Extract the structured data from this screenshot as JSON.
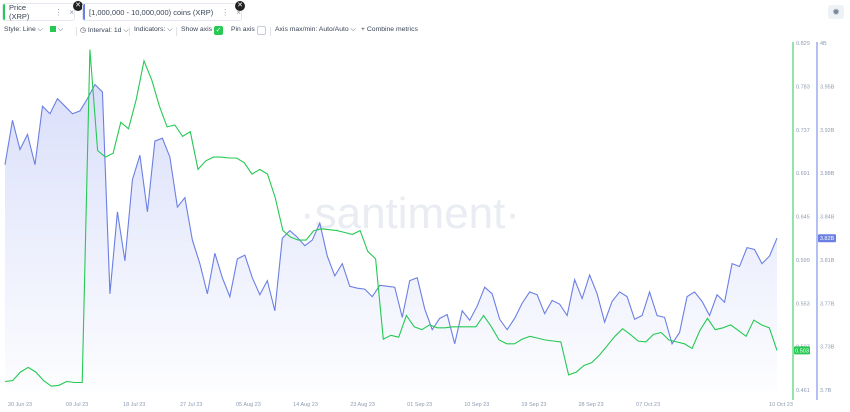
{
  "tabs": [
    {
      "label": "Price (XRP)",
      "color": "#26c953"
    },
    {
      "label": "[1,000,000 - 10,000,000) coins (XRP)",
      "color": "#6b7fe3"
    }
  ],
  "toolbar": {
    "style": "Style: Line",
    "interval": "Interval: 1d",
    "indicators": "Indicators:",
    "show_axis": "Show axis",
    "pin_axis": "Pin axis",
    "axis_maxmin": "Axis max/min: Auto/Auto",
    "combine": "Combine metrics",
    "plus": "+"
  },
  "watermark": "·santiment·",
  "chart_data": {
    "type": "line",
    "x_labels": [
      "30 Jun 23",
      "09 Jul 23",
      "18 Jul 23",
      "27 Jul 23",
      "05 Aug 23",
      "14 Aug 23",
      "23 Aug 23",
      "01 Sep 23",
      "10 Sep 23",
      "19 Sep 23",
      "28 Sep 23",
      "07 Oct 23",
      "10 Oct 23"
    ],
    "price_axis_ticks": [
      0.829,
      0.783,
      0.737,
      0.691,
      0.645,
      0.599,
      0.553,
      0.507,
      0.461
    ],
    "holders_axis_ticks": [
      "4B",
      "3.95B",
      "3.92B",
      "3.88B",
      "3.84B",
      "3.81B",
      "3.77B",
      "3.73B",
      "3.7B"
    ],
    "price_ylim": [
      0.461,
      0.829
    ],
    "price_current": "0.503",
    "holders_current": "3.82B",
    "series": [
      {
        "name": "Price (XRP)",
        "color": "#26c953",
        "values": [
          0.47,
          0.471,
          0.48,
          0.485,
          0.48,
          0.471,
          0.465,
          0.466,
          0.47,
          0.469,
          0.469,
          0.822,
          0.715,
          0.708,
          0.712,
          0.745,
          0.738,
          0.769,
          0.81,
          0.79,
          0.762,
          0.74,
          0.742,
          0.73,
          0.735,
          0.695,
          0.704,
          0.708,
          0.708,
          0.707,
          0.707,
          0.702,
          0.69,
          0.695,
          0.69,
          0.665,
          0.63,
          0.623,
          0.62,
          0.62,
          0.63,
          0.632,
          0.631,
          0.63,
          0.628,
          0.626,
          0.63,
          0.608,
          0.6,
          0.515,
          0.519,
          0.517,
          0.54,
          0.528,
          0.525,
          0.53,
          0.527,
          0.527,
          0.528,
          0.528,
          0.528,
          0.528,
          0.54,
          0.528,
          0.514,
          0.51,
          0.51,
          0.515,
          0.518,
          0.516,
          0.514,
          0.513,
          0.512,
          0.477,
          0.48,
          0.487,
          0.49,
          0.498,
          0.508,
          0.518,
          0.526,
          0.52,
          0.513,
          0.512,
          0.52,
          0.522,
          0.514,
          0.512,
          0.51,
          0.505,
          0.524,
          0.537,
          0.525,
          0.527,
          0.53,
          0.524,
          0.518,
          0.535,
          0.53,
          0.527,
          0.503
        ]
      },
      {
        "name": "[1,000,000 - 10,000,000) coins (XRP)",
        "values_price_scale": [
          0.7,
          0.747,
          0.716,
          0.732,
          0.7,
          0.762,
          0.754,
          0.77,
          0.762,
          0.754,
          0.757,
          0.77,
          0.785,
          0.777,
          0.563,
          0.65,
          0.598,
          0.684,
          0.71,
          0.65,
          0.725,
          0.728,
          0.708,
          0.655,
          0.665,
          0.62,
          0.595,
          0.563,
          0.606,
          0.58,
          0.56,
          0.6,
          0.604,
          0.58,
          0.562,
          0.577,
          0.545,
          0.622,
          0.63,
          0.623,
          0.614,
          0.62,
          0.638,
          0.603,
          0.582,
          0.595,
          0.571,
          0.569,
          0.568,
          0.56,
          0.572,
          0.571,
          0.57,
          0.538,
          0.577,
          0.58,
          0.547,
          0.525,
          0.537,
          0.541,
          0.51,
          0.545,
          0.535,
          0.55,
          0.57,
          0.563,
          0.536,
          0.525,
          0.537,
          0.553,
          0.565,
          0.562,
          0.542,
          0.556,
          0.552,
          0.54,
          0.578,
          0.558,
          0.583,
          0.563,
          0.533,
          0.555,
          0.565,
          0.56,
          0.536,
          0.54,
          0.565,
          0.54,
          0.538,
          0.51,
          0.522,
          0.56,
          0.565,
          0.555,
          0.54,
          0.562,
          0.554,
          0.595,
          0.592,
          0.612,
          0.61,
          0.595,
          0.603,
          0.622
        ]
      }
    ]
  }
}
